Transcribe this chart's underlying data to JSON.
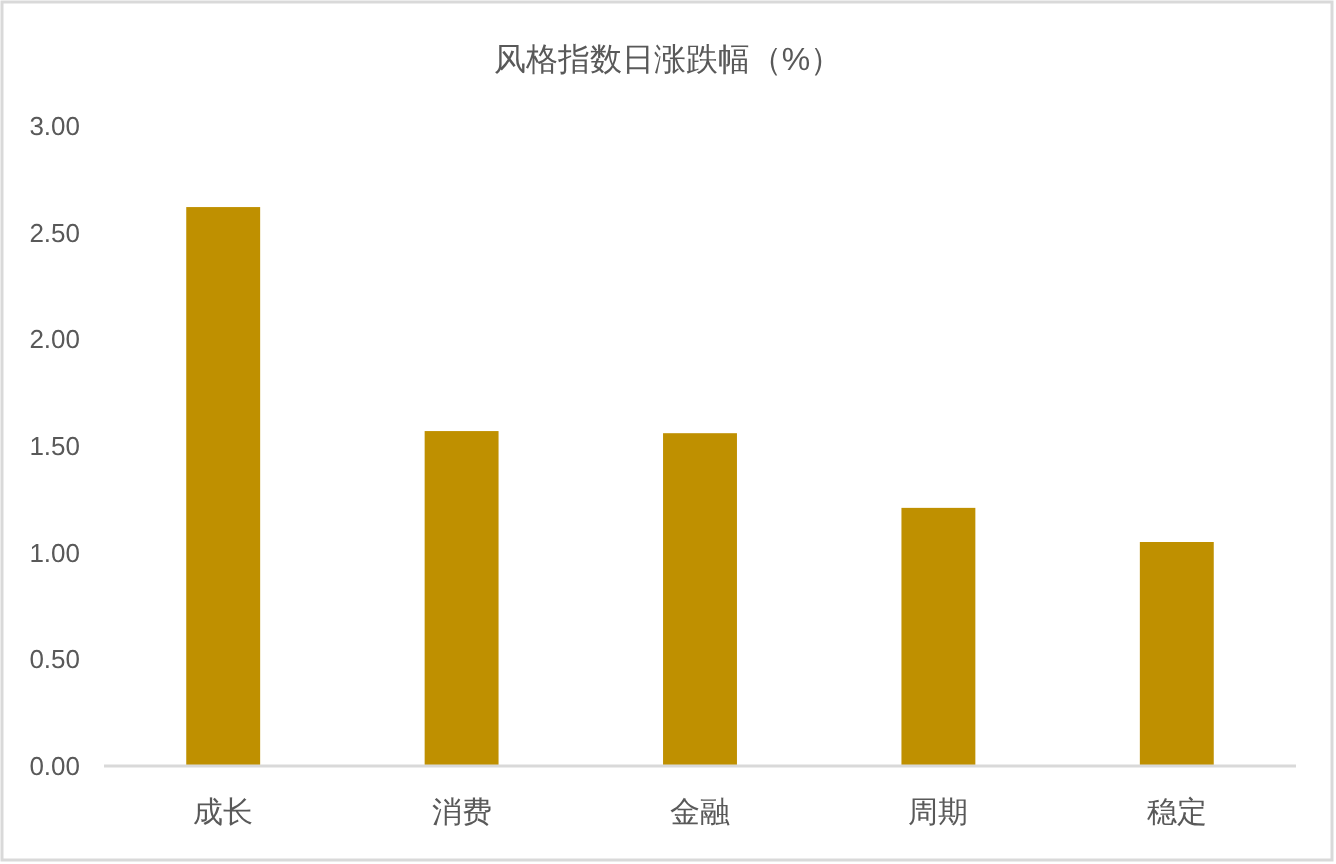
{
  "chart_data": {
    "type": "bar",
    "title": "风格指数日涨跌幅（%）",
    "categories": [
      "成长",
      "消费",
      "金融",
      "周期",
      "稳定"
    ],
    "values": [
      2.62,
      1.57,
      1.56,
      1.21,
      1.05
    ],
    "color": "#bf9000",
    "ylim": [
      0,
      3
    ],
    "yticks": [
      {
        "value": 0,
        "label": "0.00"
      },
      {
        "value": 0.5,
        "label": "0.50"
      },
      {
        "value": 1,
        "label": "1.00"
      },
      {
        "value": 1.5,
        "label": "1.50"
      },
      {
        "value": 2,
        "label": "2.00"
      },
      {
        "value": 2.5,
        "label": "2.50"
      },
      {
        "value": 3,
        "label": "3.00"
      }
    ]
  }
}
